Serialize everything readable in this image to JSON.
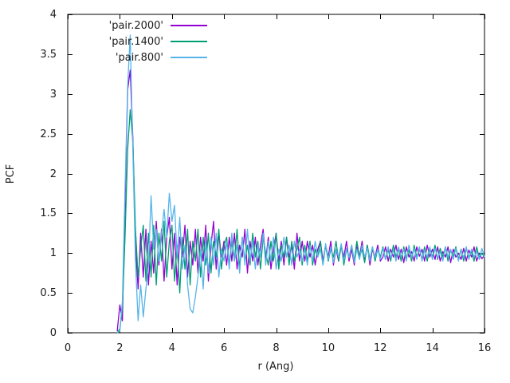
{
  "chart_data": {
    "type": "line",
    "title": "",
    "xlabel": "r (Ang)",
    "ylabel": "PCF",
    "xlim": [
      0,
      16
    ],
    "ylim": [
      0,
      4
    ],
    "x_ticks": [
      "0",
      "2",
      "4",
      "6",
      "8",
      "10",
      "12",
      "14",
      "16"
    ],
    "y_ticks": [
      "0",
      "0.5",
      "1",
      "1.5",
      "2",
      "2.5",
      "3",
      "3.5",
      "4"
    ],
    "grid": false,
    "legend_position": "top-inside-left",
    "axis_color": "#000000",
    "text_color": "#1c1c1c",
    "x_start": 1.9,
    "x_step": 0.1,
    "series": [
      {
        "name": "'pair.2000'",
        "color": "#9400d3",
        "values": [
          0.02,
          0.35,
          0.15,
          1.6,
          3.05,
          3.3,
          2.45,
          1.1,
          0.55,
          1.25,
          0.7,
          1.3,
          0.6,
          1.15,
          0.75,
          1.4,
          0.85,
          1.3,
          0.65,
          1.2,
          1.45,
          0.8,
          1.25,
          0.6,
          1.2,
          0.95,
          1.35,
          0.7,
          1.15,
          0.85,
          1.3,
          0.75,
          1.2,
          0.9,
          1.35,
          0.65,
          1.1,
          1.4,
          0.8,
          1.25,
          0.95,
          1.15,
          0.85,
          1.2,
          0.9,
          1.25,
          0.8,
          1.1,
          0.95,
          1.3,
          0.75,
          1.15,
          0.9,
          1.2,
          0.85,
          1.1,
          1.3,
          0.9,
          1.2,
          0.8,
          1.05,
          1.25,
          0.9,
          1.15,
          0.85,
          1.2,
          0.95,
          1.1,
          0.8,
          1.25,
          0.9,
          1.15,
          0.9,
          1.15,
          0.95,
          1.1,
          0.85,
          1.05,
          1.15,
          0.9,
          1.1,
          0.95,
          1.15,
          0.85,
          1.05,
          0.9,
          1.1,
          0.95,
          1.15,
          0.9,
          1.05,
          0.85,
          1.1,
          0.95,
          1.15,
          0.9,
          1.1,
          0.85,
          1.05,
          0.95,
          1.1,
          0.9,
          0.95,
          1.08,
          0.9,
          1.05,
          0.95,
          1.1,
          0.92,
          1.05,
          0.88,
          1.08,
          0.95,
          1.02,
          0.9,
          1.08,
          0.96,
          1.05,
          0.9,
          1.1,
          0.95,
          1.05,
          0.92,
          1.08,
          0.9,
          1.02,
          0.95,
          1.08,
          0.88,
          1.05,
          0.95,
          1.0,
          0.92,
          1.06,
          0.9,
          1.04,
          0.95,
          1.08,
          0.9,
          1.0,
          0.93,
          0.97
        ]
      },
      {
        "name": "'pair.1400'",
        "color": "#009e73",
        "values": [
          0.0,
          0.05,
          0.3,
          1.2,
          2.3,
          2.8,
          2.4,
          1.3,
          0.7,
          1.05,
          1.35,
          0.65,
          1.25,
          0.7,
          1.35,
          0.6,
          1.25,
          0.9,
          1.4,
          0.7,
          1.15,
          1.35,
          0.65,
          1.1,
          0.5,
          1.2,
          0.8,
          1.3,
          0.6,
          1.15,
          0.9,
          1.3,
          0.7,
          1.2,
          0.85,
          1.25,
          0.75,
          1.15,
          0.95,
          1.3,
          0.8,
          1.1,
          1.2,
          0.85,
          1.15,
          0.9,
          1.3,
          0.8,
          1.2,
          0.9,
          1.1,
          0.85,
          1.25,
          0.95,
          1.15,
          0.8,
          1.2,
          1.0,
          0.85,
          1.15,
          0.9,
          1.25,
          0.8,
          1.1,
          0.95,
          1.2,
          0.85,
          1.15,
          0.9,
          1.05,
          1.2,
          0.85,
          1.1,
          0.9,
          1.15,
          0.85,
          1.05,
          0.95,
          1.15,
          0.85,
          1.1,
          0.9,
          1.05,
          0.95,
          1.15,
          0.9,
          1.1,
          0.85,
          1.05,
          0.95,
          1.1,
          0.9,
          1.15,
          0.95,
          1.05,
          0.88,
          1.1,
          0.92,
          1.08,
          0.9,
          1.05,
          0.95,
          1.08,
          0.92,
          1.05,
          0.9,
          1.1,
          0.95,
          1.06,
          0.9,
          1.08,
          0.94,
          1.04,
          0.9,
          1.1,
          0.95,
          1.05,
          0.92,
          1.08,
          0.9,
          1.05,
          0.95,
          1.1,
          0.92,
          1.06,
          0.95,
          1.08,
          0.9,
          1.04,
          0.96,
          1.08,
          0.92,
          1.05,
          0.9,
          1.06,
          0.95,
          1.02,
          0.9,
          1.08,
          0.94,
          1.0,
          0.95
        ]
      },
      {
        "name": "'pair.800'",
        "color": "#56b4e9",
        "values": [
          0.0,
          0.02,
          0.4,
          1.8,
          3.1,
          3.74,
          2.3,
          0.9,
          0.15,
          0.6,
          0.2,
          0.55,
          0.85,
          1.72,
          1.05,
          1.3,
          0.9,
          1.25,
          1.55,
          1.2,
          1.75,
          1.4,
          1.6,
          0.95,
          1.45,
          0.8,
          1.1,
          0.6,
          0.3,
          0.25,
          0.45,
          0.7,
          1.05,
          0.55,
          1.15,
          0.75,
          1.2,
          0.85,
          1.25,
          0.7,
          1.05,
          0.9,
          1.15,
          0.8,
          1.25,
          0.9,
          1.1,
          0.75,
          1.2,
          0.85,
          1.3,
          0.9,
          1.15,
          0.8,
          1.1,
          0.95,
          1.25,
          0.85,
          1.15,
          0.9,
          1.2,
          0.8,
          1.05,
          0.9,
          1.2,
          0.95,
          1.1,
          0.85,
          1.15,
          0.95,
          1.05,
          0.9,
          1.05,
          0.85,
          1.1,
          0.9,
          1.15,
          0.95,
          1.05,
          0.85,
          1.12,
          0.92,
          1.08,
          0.88,
          1.05,
          0.95,
          1.12,
          0.9,
          1.06,
          0.94,
          1.1,
          0.88,
          1.05,
          0.92,
          1.1,
          0.95,
          1.06,
          0.9,
          1.08,
          0.94,
          1.05,
          0.92,
          1.06,
          0.92,
          1.08,
          0.94,
          1.04,
          0.9,
          1.08,
          0.95,
          1.05,
          0.9,
          1.1,
          0.94,
          1.06,
          0.92,
          1.08,
          0.9,
          1.04,
          0.95,
          1.08,
          0.92,
          1.06,
          0.94,
          1.02,
          0.9,
          1.08,
          0.95,
          1.05,
          0.92,
          1.06,
          0.9,
          1.04,
          0.94,
          1.08,
          0.92,
          1.05,
          0.95,
          1.02,
          0.92,
          1.06,
          0.95
        ]
      }
    ]
  }
}
